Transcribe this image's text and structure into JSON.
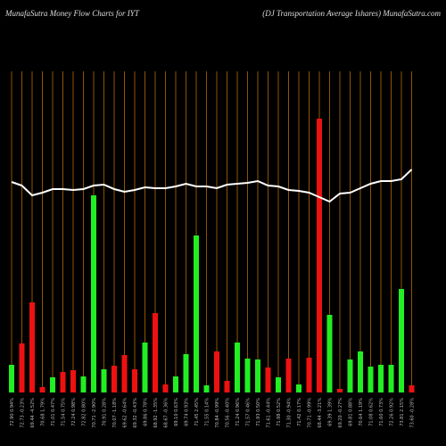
{
  "chart_data": {
    "type": "bar",
    "title": "MunafaSutra  Money Flow  Charts for IYT",
    "subtitle": "(DJ Transportation  Average  Ishares) MunafaSutra.com",
    "categories": [
      "72.90 0.94%",
      "72.73 -0.23%",
      "69.44 -4.52%",
      "70.68 1.79%",
      "71.01 0.47%",
      "71.54 0.75%",
      "72.24 0.98%",
      "72.82 0.80%",
      "70.71 -2.90%",
      "70.91 0.28%",
      "70.07 -1.18%",
      "69.62 -0.64%",
      "69.32 -0.43%",
      "69.86 0.78%",
      "68.92 -1.35%",
      "68.67 -0.36%",
      "69.10 0.63%",
      "69.74 0.93%",
      "71.45 2.45%",
      "71.55 0.14%",
      "70.84 -0.99%",
      "70.56 -0.40%",
      "71.24 0.96%",
      "71.57 0.46%",
      "71.93 0.50%",
      "71.61 -0.44%",
      "71.98 0.52%",
      "71.30 -0.94%",
      "71.42 0.17%",
      "70.71 -0.99%",
      "68.44 -3.21%",
      "69.39 1.39%",
      "69.20 -0.27%",
      "69.81 0.88%",
      "70.64 1.19%",
      "71.08 0.62%",
      "71.60 0.73%",
      "72.26 0.92%",
      "73.81 2.15%",
      "73.60 -0.28%"
    ],
    "series": [
      {
        "type": "bar",
        "colors": [
          "#22ee22",
          "#ee1111",
          "#ee1111",
          "#ee1111",
          "#22ee22",
          "#ee1111",
          "#ee1111",
          "#22ee22",
          "#22ee22",
          "#22ee22",
          "#ee1111",
          "#ee1111",
          "#ee1111",
          "#22ee22",
          "#ee1111",
          "#ee1111",
          "#22ee22",
          "#22ee22",
          "#22ee22",
          "#22ee22",
          "#ee1111",
          "#ee1111",
          "#22ee22",
          "#22ee22",
          "#22ee22",
          "#ee1111",
          "#22ee22",
          "#ee1111",
          "#22ee22",
          "#ee1111",
          "#ee1111",
          "#22ee22",
          "#ee1111",
          "#22ee22",
          "#22ee22",
          "#22ee22",
          "#22ee22",
          "#22ee22",
          "#22ee22",
          "#ee1111"
        ],
        "values": [
          31,
          55,
          101,
          6,
          17,
          23,
          25,
          18,
          221,
          26,
          30,
          42,
          26,
          56,
          89,
          9,
          18,
          43,
          176,
          8,
          46,
          13,
          56,
          38,
          37,
          28,
          17,
          38,
          9,
          39,
          307,
          87,
          4,
          37,
          46,
          29,
          31,
          31,
          116,
          8
        ]
      },
      {
        "type": "line",
        "color": "#ffffff",
        "values": [
          236,
          232,
          221,
          224,
          228,
          228,
          227,
          228,
          232,
          233,
          228,
          225,
          227,
          230,
          229,
          229,
          231,
          234,
          231,
          231,
          229,
          233,
          234,
          235,
          237,
          232,
          231,
          227,
          226,
          224,
          219,
          214,
          223,
          224,
          229,
          234,
          237,
          237,
          239,
          250
        ]
      }
    ],
    "ylim": [
      0,
      360
    ],
    "grid_color": "#b86a00"
  }
}
